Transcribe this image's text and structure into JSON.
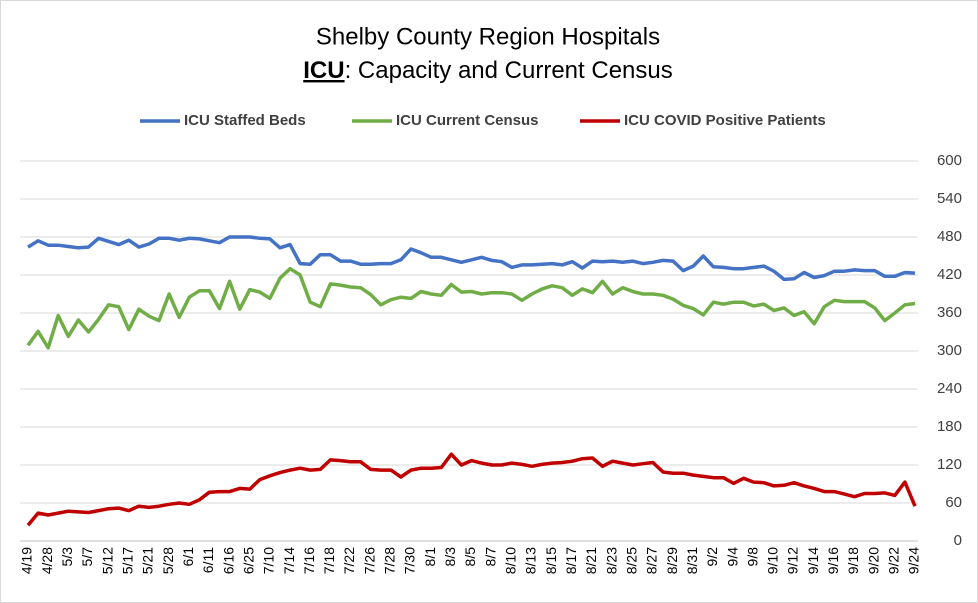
{
  "chart_data": {
    "type": "line",
    "title": "Shelby County Region Hospitals",
    "subtitle_bold": "ICU",
    "subtitle_rest": ": Capacity and Current Census",
    "categories": [
      "4/19",
      null,
      "4/28",
      null,
      "5/3",
      null,
      "5/7",
      null,
      "5/12",
      null,
      "5/17",
      null,
      "5/21",
      null,
      "5/28",
      null,
      "6/1",
      null,
      "6/11",
      null,
      "6/16",
      null,
      "6/25",
      null,
      "7/10",
      null,
      "7/14",
      null,
      "7/16",
      null,
      "7/18",
      null,
      "7/22",
      null,
      "7/26",
      null,
      "7/28",
      null,
      "7/30",
      null,
      "8/1",
      null,
      "8/3",
      null,
      "8/5",
      null,
      "8/7",
      null,
      "8/10",
      null,
      "8/13",
      null,
      "8/15",
      null,
      "8/17",
      null,
      "8/21",
      null,
      "8/23",
      null,
      "8/25",
      null,
      "8/27",
      null,
      "8/29",
      null,
      "8/31",
      null,
      "9/2",
      null,
      "9/4",
      null,
      "9/8",
      null,
      "9/10",
      null,
      "9/12",
      null,
      "9/14",
      null,
      "9/16",
      null,
      "9/18",
      null,
      "9/20",
      null,
      "9/22",
      null,
      "9/24"
    ],
    "series": [
      {
        "name": "ICU Staffed Beds",
        "color": "#4472c4",
        "values": [
          464,
          474,
          467,
          467,
          465,
          463,
          464,
          478,
          473,
          468,
          475,
          464,
          469,
          478,
          478,
          475,
          478,
          477,
          474,
          471,
          480,
          480,
          480,
          478,
          477,
          463,
          468,
          438,
          437,
          452,
          452,
          442,
          442,
          437,
          437,
          438,
          438,
          444,
          461,
          455,
          448,
          448,
          444,
          440,
          444,
          448,
          443,
          441,
          432,
          436,
          436,
          437,
          438,
          436,
          441,
          431,
          442,
          441,
          442,
          440,
          442,
          438,
          440,
          443,
          442,
          427,
          434,
          450,
          433,
          432,
          430,
          430,
          432,
          434,
          426,
          413,
          414,
          424,
          416,
          419,
          426,
          426,
          428,
          427,
          427,
          418,
          418,
          424,
          423
        ]
      },
      {
        "name": "ICU Current Census",
        "color": "#70ad47",
        "values": [
          309,
          331,
          305,
          356,
          323,
          349,
          330,
          350,
          373,
          370,
          334,
          366,
          355,
          348,
          390,
          353,
          385,
          395,
          395,
          367,
          410,
          366,
          397,
          393,
          383,
          415,
          430,
          420,
          377,
          370,
          406,
          404,
          401,
          400,
          389,
          373,
          381,
          385,
          383,
          394,
          390,
          388,
          405,
          393,
          394,
          390,
          392,
          392,
          390,
          380,
          390,
          398,
          403,
          400,
          388,
          398,
          392,
          410,
          390,
          400,
          394,
          390,
          390,
          388,
          382,
          372,
          367,
          357,
          377,
          374,
          377,
          377,
          371,
          374,
          364,
          368,
          356,
          362,
          343,
          370,
          380,
          378,
          378,
          378,
          368,
          348,
          360,
          373,
          375
        ]
      },
      {
        "name": "ICU COVID Positive Patients",
        "color": "#c00000",
        "values": [
          25,
          44,
          41,
          44,
          47,
          46,
          45,
          48,
          51,
          52,
          48,
          55,
          53,
          55,
          58,
          60,
          58,
          65,
          77,
          78,
          78,
          83,
          82,
          97,
          103,
          108,
          112,
          115,
          112,
          113,
          128,
          127,
          125,
          125,
          113,
          112,
          112,
          101,
          112,
          115,
          115,
          116,
          137,
          120,
          127,
          123,
          120,
          120,
          123,
          121,
          118,
          121,
          123,
          124,
          126,
          130,
          131,
          118,
          126,
          123,
          120,
          122,
          124,
          109,
          107,
          107,
          104,
          102,
          100,
          100,
          91,
          99,
          93,
          92,
          87,
          88,
          92,
          87,
          83,
          78,
          78,
          74,
          70,
          75,
          75,
          76,
          72,
          93,
          55
        ]
      }
    ],
    "ylim": [
      0,
      600
    ],
    "yticks": [
      0,
      60,
      120,
      180,
      240,
      300,
      360,
      420,
      480,
      540,
      600
    ],
    "grid": true,
    "legend": "top"
  }
}
